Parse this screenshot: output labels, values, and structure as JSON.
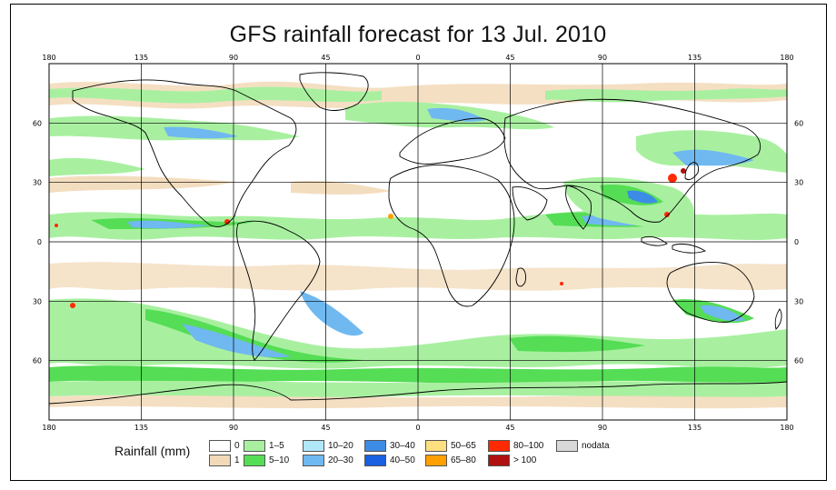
{
  "title": "GFS rainfall forecast for 13 Jul. 2010",
  "map": {
    "projection": "equirectangular",
    "lon_ticks": [
      "180",
      "135",
      "90",
      "45",
      "0",
      "45",
      "90",
      "135",
      "180"
    ],
    "lat_ticks": [
      "60",
      "30",
      "0",
      "30",
      "60"
    ],
    "colors": {
      "ocean": "#ffffff",
      "coastline": "#000000",
      "graticule": "#000000"
    }
  },
  "legend": {
    "title": "Rainfall (mm)",
    "items": [
      {
        "label": "0",
        "color": "#ffffff"
      },
      {
        "label": "1",
        "color": "#f2d9b8"
      },
      {
        "label": "1–5",
        "color": "#a8f0a0"
      },
      {
        "label": "5–10",
        "color": "#55dd55"
      },
      {
        "label": "10–20",
        "color": "#b0e8f8"
      },
      {
        "label": "20–30",
        "color": "#70b8f0"
      },
      {
        "label": "30–40",
        "color": "#3c8ce6"
      },
      {
        "label": "40–50",
        "color": "#1860e0"
      },
      {
        "label": "50–65",
        "color": "#ffe080"
      },
      {
        "label": "65–80",
        "color": "#ffa000"
      },
      {
        "label": "80–100",
        "color": "#ff2a00"
      },
      {
        "label": "> 100",
        "color": "#b01010"
      },
      {
        "label": "nodata",
        "color": "#d8d8d8"
      }
    ]
  }
}
